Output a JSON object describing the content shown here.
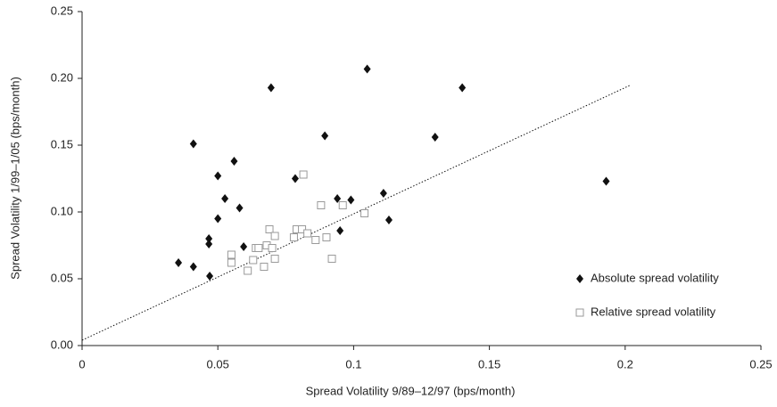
{
  "chart_data": {
    "type": "scatter",
    "xlabel": "Spread Volatility 9/89–12/97 (bps/month)",
    "ylabel": "Spread Volatility 1/99–1/05 (bps/month)",
    "xlim": [
      0,
      0.25
    ],
    "ylim": [
      0,
      0.25
    ],
    "xticks": [
      0,
      0.05,
      0.1,
      0.15,
      0.2,
      0.25
    ],
    "yticks": [
      {
        "value": 0,
        "label": "0.00"
      },
      0.05,
      {
        "value": 0.1,
        "label": "0.10"
      },
      0.15,
      {
        "value": 0.2,
        "label": "0.20"
      },
      0.25
    ],
    "legend": "lower right",
    "series": [
      {
        "name": "Absolute spread volatility",
        "color": "#111111",
        "marker": "diamond",
        "x": [
          0.0355,
          0.041,
          0.041,
          0.0467,
          0.0467,
          0.047,
          0.05,
          0.05,
          0.0526,
          0.056,
          0.058,
          0.0595,
          0.0696,
          0.0785,
          0.0894,
          0.094,
          0.095,
          0.099,
          0.105,
          0.111,
          0.113,
          0.13,
          0.14,
          0.193
        ],
        "values": [
          0.062,
          0.059,
          0.151,
          0.08,
          0.076,
          0.052,
          0.127,
          0.095,
          0.11,
          0.138,
          0.103,
          0.074,
          0.193,
          0.125,
          0.157,
          0.11,
          0.086,
          0.109,
          0.207,
          0.114,
          0.094,
          0.156,
          0.193,
          0.123
        ]
      },
      {
        "name": "Relative spread volatility",
        "color": "#9a9a9a",
        "marker": "square",
        "x": [
          0.0815,
          0.055,
          0.055,
          0.061,
          0.063,
          0.064,
          0.065,
          0.067,
          0.069,
          0.068,
          0.071,
          0.071,
          0.07,
          0.078,
          0.079,
          0.081,
          0.083,
          0.086,
          0.088,
          0.09,
          0.092,
          0.096,
          0.104
        ],
        "values": [
          0.128,
          0.068,
          0.062,
          0.056,
          0.064,
          0.073,
          0.073,
          0.059,
          0.087,
          0.075,
          0.065,
          0.082,
          0.073,
          0.081,
          0.087,
          0.087,
          0.084,
          0.079,
          0.105,
          0.081,
          0.065,
          0.105,
          0.099
        ]
      }
    ],
    "trendline": {
      "x": [
        0,
        0.202
      ],
      "values": [
        0.004,
        0.195
      ],
      "color": "#111111"
    }
  }
}
